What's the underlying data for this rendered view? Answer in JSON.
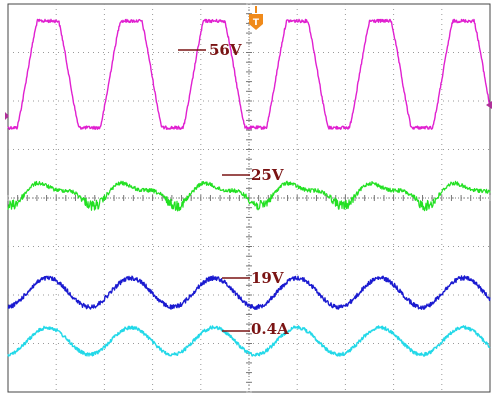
{
  "chart_data": {
    "type": "line",
    "title": "",
    "xlabel": "",
    "ylabel": "",
    "grid": true,
    "grid_divisions": {
      "x": 10,
      "y": 8
    },
    "x": {
      "cycles": 5.8,
      "phase": -1.45
    },
    "trigger_marker": "T",
    "level_marker": "left-arrow",
    "series": [
      {
        "name": "",
        "label": "56V",
        "color": "#e020d0",
        "shape": "trapezoid",
        "amplitude_div": 1.1,
        "offset_div": 1.45,
        "noise": 1.6
      },
      {
        "name": "",
        "label": "25V",
        "color": "#22e022",
        "shape": "bumpy-sine",
        "amplitude_div": 0.25,
        "offset_div": 3.9,
        "noise": 4.0
      },
      {
        "name": "",
        "label": "19V",
        "color": "#1a1ad0",
        "shape": "sine",
        "amplitude_div": 0.3,
        "offset_div": 5.95,
        "noise": 2.2
      },
      {
        "name": "",
        "label": "0.4A",
        "color": "#22d8e8",
        "shape": "sine",
        "amplitude_div": 0.28,
        "offset_div": 6.95,
        "noise": 1.8
      }
    ]
  }
}
